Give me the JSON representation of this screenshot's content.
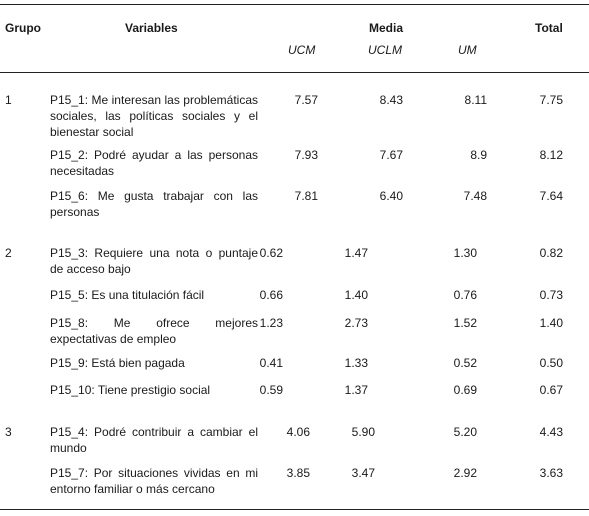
{
  "table": {
    "headers": {
      "grupo": "Grupo",
      "variables": "Variables",
      "media": "Media",
      "total": "Total",
      "ucm": "UCM",
      "uclm": "UCLM",
      "um": "UM"
    },
    "groups": [
      {
        "label": "1",
        "rows": [
          {
            "variable": "P15_1: Me interesan las problemáticas sociales, las políticas sociales y el bienestar social",
            "ucm": "7.57",
            "uclm": "8.43",
            "um": "8.11",
            "total": "7.75"
          },
          {
            "variable": "P15_2: Podré ayudar a las personas necesitadas",
            "ucm": "7.93",
            "uclm": "7.67",
            "um": "8.9",
            "total": "8.12"
          },
          {
            "variable": "P15_6: Me gusta trabajar con las personas",
            "ucm": "7.81",
            "uclm": "6.40",
            "um": "7.48",
            "total": "7.64"
          }
        ]
      },
      {
        "label": "2",
        "rows": [
          {
            "variable": "P15_3: Requiere una nota o puntaje de acceso bajo",
            "ucm": "0.62",
            "uclm": "1.47",
            "um": "1.30",
            "total": "0.82"
          },
          {
            "variable": "P15_5: Es una titulación fácil",
            "ucm": "0.66",
            "uclm": "1.40",
            "um": "0.76",
            "total": "0.73"
          },
          {
            "variable": "P15_8: Me ofrece mejores expectativas de empleo",
            "ucm": "1.23",
            "uclm": "2.73",
            "um": "1.52",
            "total": "1.40"
          },
          {
            "variable": "P15_9: Está bien pagada",
            "ucm": "0.41",
            "uclm": "1.33",
            "um": "0.52",
            "total": "0.50"
          },
          {
            "variable": "P15_10: Tiene prestigio social",
            "ucm": "0.59",
            "uclm": "1.37",
            "um": "0.69",
            "total": "0.67"
          }
        ]
      },
      {
        "label": "3",
        "rows": [
          {
            "variable": "P15_4: Podré contribuir a cambiar el mundo",
            "ucm": "4.06",
            "uclm": "5.90",
            "um": "5.20",
            "total": "4.43"
          },
          {
            "variable": "P15_7: Por situaciones vividas en mi entorno familiar o más cercano",
            "ucm": "3.85",
            "uclm": "3.47",
            "um": "2.92",
            "total": "3.63"
          }
        ]
      }
    ]
  }
}
